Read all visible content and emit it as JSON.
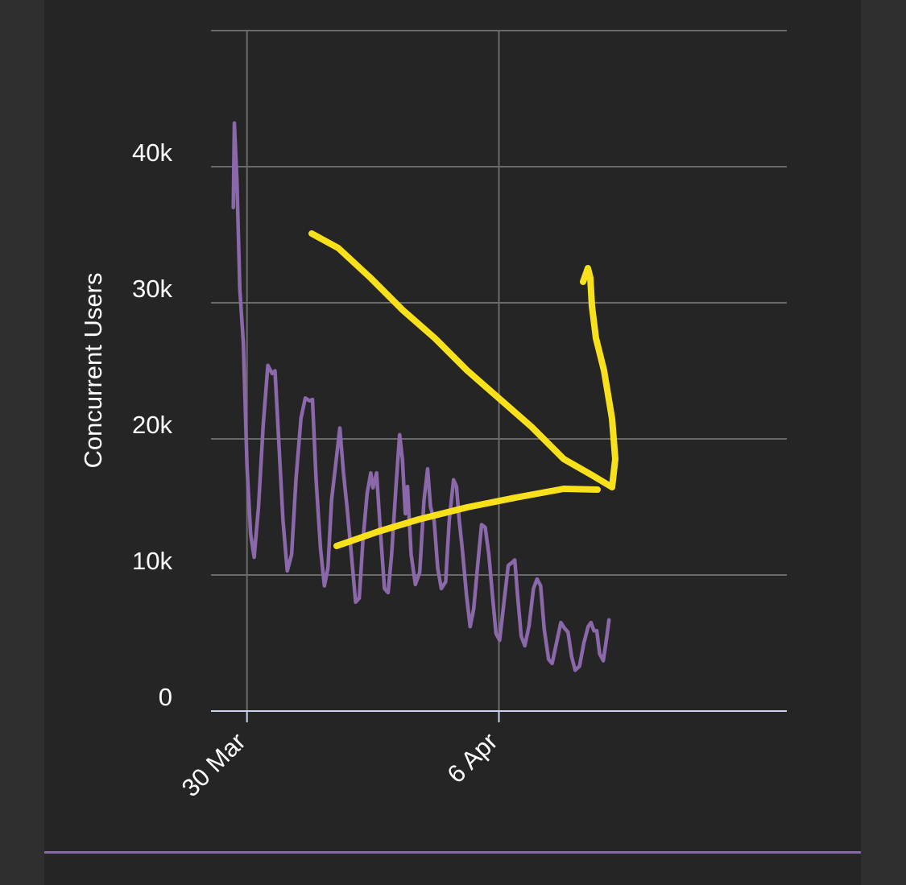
{
  "colors": {
    "background": "#252525",
    "outer_background": "#2f2f2f",
    "grid": "#6a6a6a",
    "x_axis_line": "#c9d3ee",
    "series_line": "#8b68aa",
    "annotation": "#f8e11a",
    "text": "#ffffff"
  },
  "chart_data": {
    "type": "line",
    "title": "",
    "xlabel": "",
    "ylabel": "Concurrent Users",
    "xlim": [
      "2020-03-29",
      "2020-04-14"
    ],
    "ylim": [
      0,
      50000
    ],
    "y_ticks": [
      0,
      10000,
      20000,
      30000,
      40000
    ],
    "y_tick_labels": [
      "0",
      "10k",
      "20k",
      "30k",
      "40k"
    ],
    "x_ticks": [
      "2020-03-30",
      "2020-04-06"
    ],
    "x_tick_labels": [
      "30 Mar",
      "6 Apr"
    ],
    "grid": true,
    "legend": "none",
    "series": [
      {
        "values": [
          [
            29.62,
            37000
          ],
          [
            29.65,
            43200
          ],
          [
            29.72,
            39000
          ],
          [
            29.8,
            31000
          ],
          [
            29.9,
            27000
          ],
          [
            30.0,
            18000
          ],
          [
            30.1,
            13000
          ],
          [
            30.2,
            11300
          ],
          [
            30.32,
            15000
          ],
          [
            30.45,
            21000
          ],
          [
            30.58,
            25400
          ],
          [
            30.7,
            24800
          ],
          [
            30.78,
            25000
          ],
          [
            30.88,
            20000
          ],
          [
            31.0,
            14000
          ],
          [
            31.12,
            10300
          ],
          [
            31.24,
            11500
          ],
          [
            31.36,
            17000
          ],
          [
            31.5,
            21500
          ],
          [
            31.62,
            23000
          ],
          [
            31.74,
            22800
          ],
          [
            31.82,
            22900
          ],
          [
            31.92,
            17000
          ],
          [
            32.04,
            12000
          ],
          [
            32.15,
            9200
          ],
          [
            32.25,
            10500
          ],
          [
            32.35,
            15500
          ],
          [
            32.45,
            17800
          ],
          [
            32.58,
            20800
          ],
          [
            32.68,
            17500
          ],
          [
            32.78,
            15000
          ],
          [
            32.9,
            11500
          ],
          [
            33.02,
            8000
          ],
          [
            33.12,
            8300
          ],
          [
            33.22,
            12500
          ],
          [
            33.34,
            16000
          ],
          [
            33.44,
            17500
          ],
          [
            33.5,
            16400
          ],
          [
            33.6,
            17500
          ],
          [
            33.7,
            13500
          ],
          [
            33.82,
            9000
          ],
          [
            33.92,
            8700
          ],
          [
            34.02,
            11500
          ],
          [
            34.14,
            16500
          ],
          [
            34.24,
            20300
          ],
          [
            34.32,
            18500
          ],
          [
            34.4,
            14500
          ],
          [
            34.46,
            16500
          ],
          [
            34.56,
            11500
          ],
          [
            34.68,
            9300
          ],
          [
            34.8,
            10200
          ],
          [
            34.92,
            15500
          ],
          [
            35.02,
            17800
          ],
          [
            35.1,
            15000
          ],
          [
            35.2,
            14000
          ],
          [
            35.3,
            10500
          ],
          [
            35.4,
            9000
          ],
          [
            35.52,
            9500
          ],
          [
            35.62,
            14000
          ],
          [
            35.74,
            17000
          ],
          [
            35.82,
            16500
          ],
          [
            35.9,
            14000
          ],
          [
            35.98,
            12000
          ],
          [
            36.1,
            8500
          ],
          [
            36.2,
            6200
          ],
          [
            36.3,
            7500
          ],
          [
            36.42,
            11000
          ],
          [
            36.52,
            13700
          ],
          [
            36.62,
            13500
          ],
          [
            36.72,
            11500
          ],
          [
            36.82,
            8500
          ],
          [
            36.92,
            5700
          ],
          [
            37.02,
            5200
          ],
          [
            37.14,
            8000
          ],
          [
            37.26,
            10700
          ],
          [
            37.36,
            10900
          ],
          [
            37.44,
            11100
          ],
          [
            37.52,
            8500
          ],
          [
            37.62,
            5500
          ],
          [
            37.72,
            4800
          ],
          [
            37.84,
            6300
          ],
          [
            37.96,
            9000
          ],
          [
            38.06,
            9700
          ],
          [
            38.16,
            9200
          ],
          [
            38.26,
            6000
          ],
          [
            38.38,
            3800
          ],
          [
            38.48,
            3500
          ],
          [
            38.6,
            5000
          ],
          [
            38.72,
            6500
          ],
          [
            38.82,
            6100
          ],
          [
            38.92,
            5800
          ],
          [
            39.02,
            4000
          ],
          [
            39.12,
            3000
          ],
          [
            39.24,
            3300
          ],
          [
            39.36,
            5000
          ],
          [
            39.48,
            6200
          ],
          [
            39.56,
            6500
          ],
          [
            39.64,
            5900
          ],
          [
            39.72,
            5900
          ],
          [
            39.8,
            4200
          ],
          [
            39.9,
            3700
          ],
          [
            40.0,
            5500
          ],
          [
            40.06,
            6700
          ]
        ]
      }
    ],
    "annotations": [
      {
        "kind": "freehand-arrow",
        "color": "#f8e11a",
        "note": "hand-drawn strokes pointing to the low point near 8 Apr"
      }
    ]
  }
}
